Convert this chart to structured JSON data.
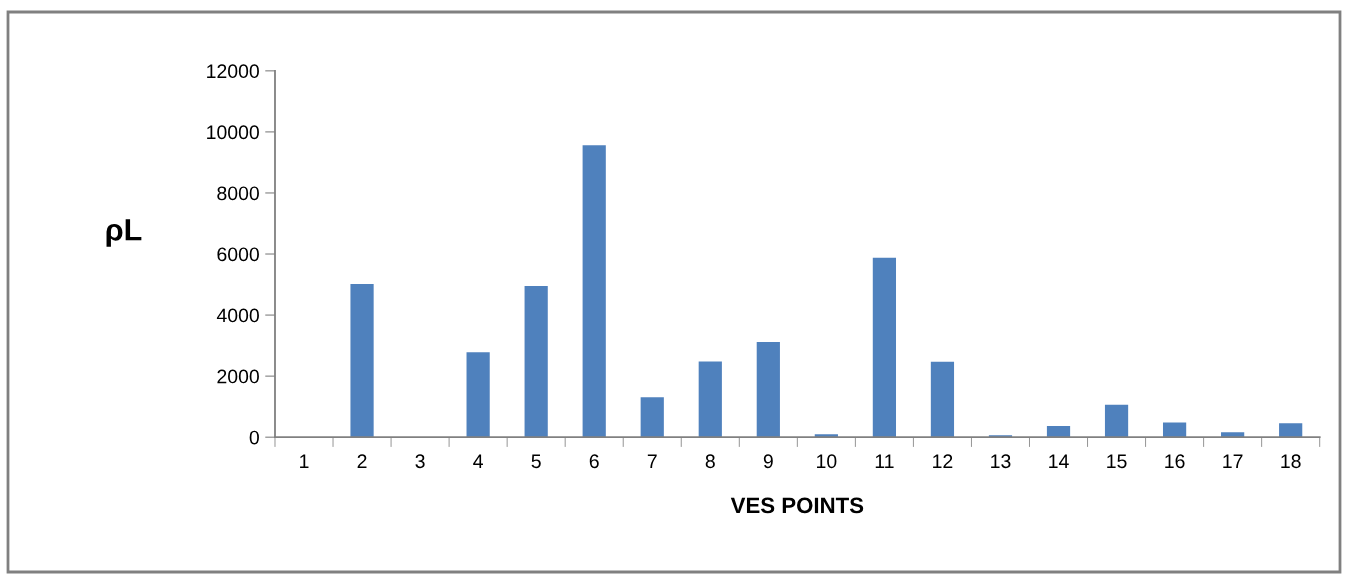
{
  "chart_data": {
    "type": "bar",
    "xlabel": "VES POINTS",
    "ylabel": "ρL",
    "categories": [
      "1",
      "2",
      "3",
      "4",
      "5",
      "6",
      "7",
      "8",
      "9",
      "10",
      "11",
      "12",
      "13",
      "14",
      "15",
      "16",
      "17",
      "18"
    ],
    "values": [
      0,
      5020,
      0,
      2780,
      4950,
      9560,
      1310,
      2480,
      3120,
      100,
      5880,
      2470,
      60,
      365,
      1060,
      480,
      165,
      460
    ],
    "color": "#4f81bd",
    "ylim": [
      0,
      12000
    ],
    "yticks": [
      0,
      2000,
      4000,
      6000,
      8000,
      10000,
      12000
    ],
    "grid": false
  }
}
